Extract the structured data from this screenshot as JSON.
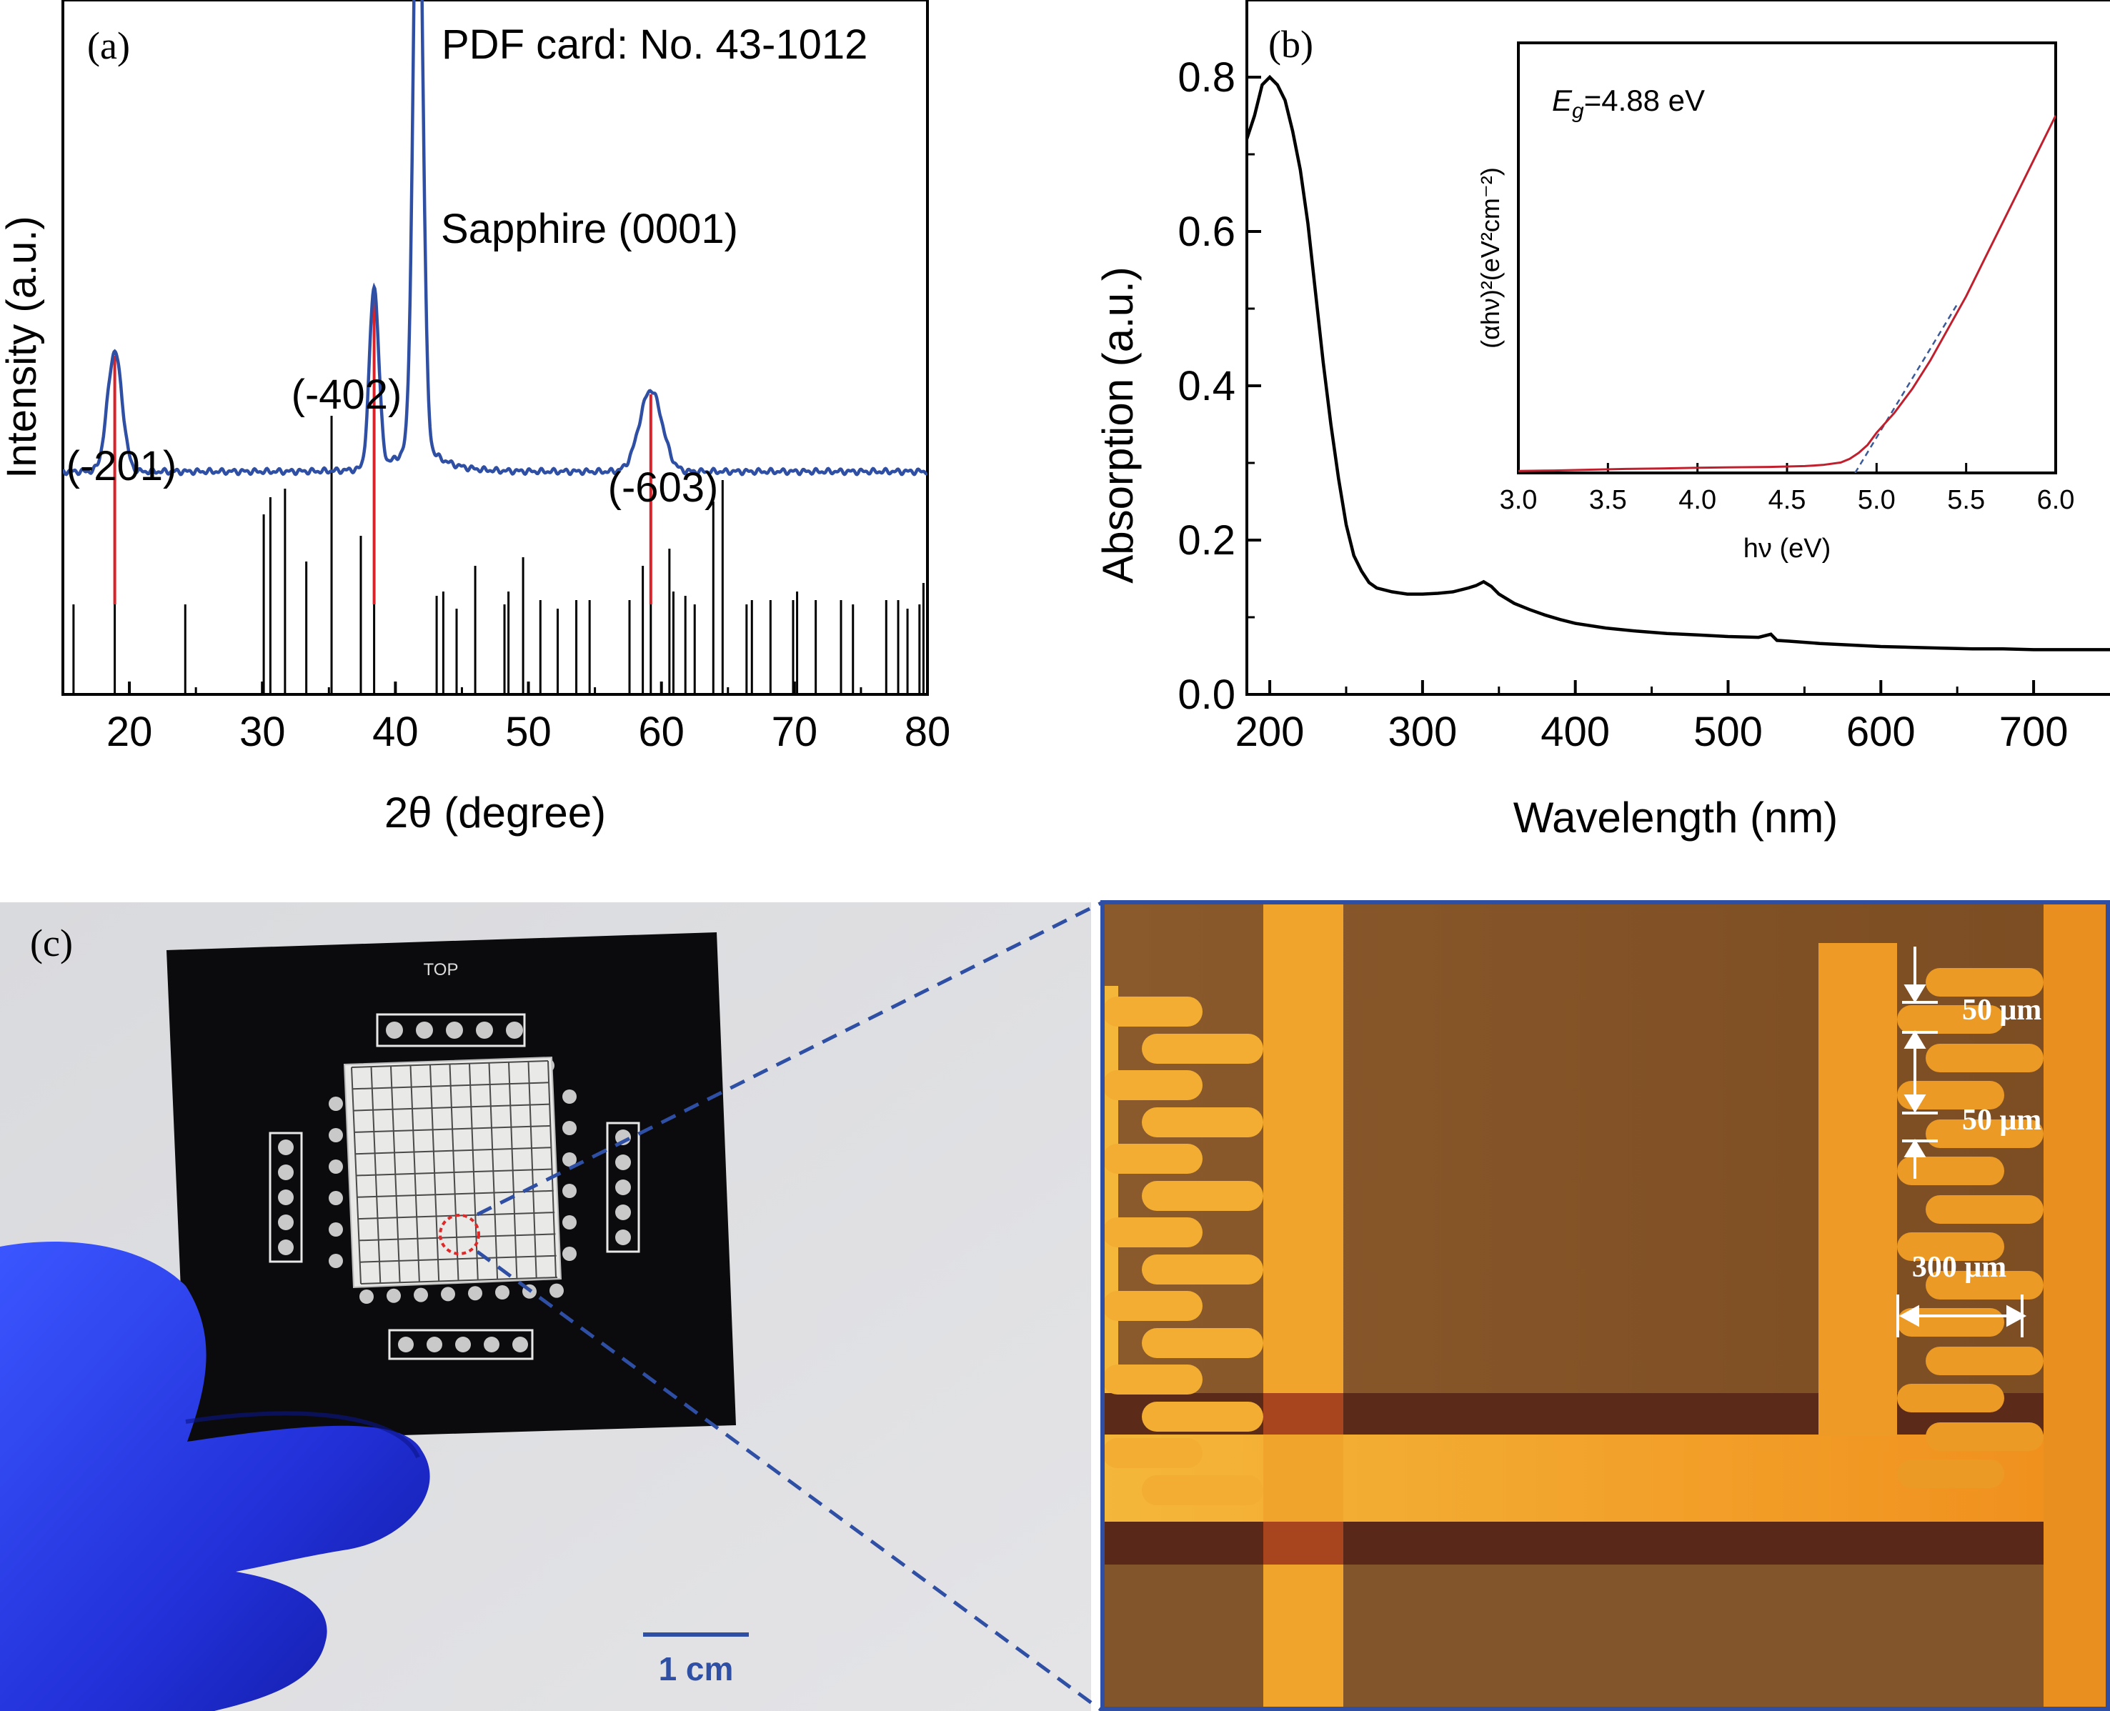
{
  "chart_data": [
    {
      "panel": "(a)",
      "type": "line",
      "annotation": "PDF card: No. 43-1012",
      "xlabel": "2θ (degree)",
      "ylabel": "Intensity (a.u.)",
      "xlim": [
        15,
        80
      ],
      "xticks": [
        20,
        30,
        40,
        50,
        60,
        70,
        80
      ],
      "peaks": [
        {
          "label": "(-201)",
          "x": 18.9,
          "height": 0.28
        },
        {
          "label": "(-402)",
          "x": 38.4,
          "height": 0.42
        },
        {
          "label": "Sapphire (0001)",
          "x": 41.7,
          "height": 1.5
        },
        {
          "label": "(-603)",
          "x": 59.2,
          "height": 0.19
        }
      ],
      "series": [
        {
          "color": "#2e4fa3",
          "baseline": 0.52
        },
        {
          "color": "#d9232a",
          "values": [
            18.9,
            38.4,
            59.2
          ]
        },
        {
          "color": "#000000",
          "x": [
            15.8,
            18.9,
            24.2,
            30.1,
            30.6,
            31.7,
            33.3,
            35.2,
            37.4,
            38.4,
            43.1,
            43.6,
            44.6,
            46.0,
            48.2,
            48.5,
            49.6,
            50.9,
            52.2,
            53.6,
            54.6,
            57.6,
            58.6,
            59.2,
            60.6,
            60.9,
            61.8,
            62.5,
            63.9,
            64.6,
            66.4,
            66.8,
            68.2,
            69.9,
            70.2,
            71.6,
            73.5,
            74.4,
            76.9,
            77.8,
            78.5,
            79.4,
            79.7,
            80.0
          ],
          "values": [
            0.21,
            0.22,
            0.21,
            0.42,
            0.46,
            0.48,
            0.31,
            0.65,
            0.37,
            0.43,
            0.23,
            0.24,
            0.2,
            0.3,
            0.21,
            0.24,
            0.32,
            0.22,
            0.2,
            0.22,
            0.22,
            0.22,
            0.3,
            0.26,
            0.34,
            0.24,
            0.23,
            0.21,
            0.45,
            0.5,
            0.21,
            0.22,
            0.22,
            0.22,
            0.24,
            0.22,
            0.22,
            0.21,
            0.22,
            0.22,
            0.2,
            0.21,
            0.26,
            0.24
          ]
        }
      ]
    },
    {
      "panel": "(b)",
      "type": "line",
      "xlabel": "Wavelength (nm)",
      "ylabel": "Absorption (a.u.)",
      "xlim": [
        185,
        750
      ],
      "ylim": [
        0.0,
        0.9
      ],
      "xticks": [
        200,
        300,
        400,
        500,
        600,
        700
      ],
      "yticks": [
        "0.0",
        "0.2",
        "0.4",
        "0.6",
        "0.8"
      ],
      "series": [
        {
          "color": "#000000",
          "x": [
            185,
            190,
            195,
            200,
            205,
            210,
            215,
            220,
            225,
            230,
            235,
            240,
            245,
            250,
            255,
            260,
            265,
            270,
            280,
            290,
            300,
            310,
            320,
            330,
            335,
            340,
            345,
            350,
            360,
            370,
            380,
            390,
            400,
            420,
            440,
            460,
            480,
            500,
            520,
            528,
            532,
            540,
            560,
            580,
            600,
            620,
            640,
            660,
            680,
            700,
            720,
            750
          ],
          "values": [
            0.72,
            0.75,
            0.79,
            0.8,
            0.79,
            0.77,
            0.73,
            0.68,
            0.61,
            0.52,
            0.43,
            0.35,
            0.28,
            0.22,
            0.18,
            0.16,
            0.145,
            0.138,
            0.133,
            0.13,
            0.13,
            0.131,
            0.133,
            0.138,
            0.141,
            0.146,
            0.14,
            0.13,
            0.118,
            0.11,
            0.103,
            0.097,
            0.092,
            0.086,
            0.082,
            0.079,
            0.077,
            0.075,
            0.074,
            0.078,
            0.07,
            0.069,
            0.066,
            0.064,
            0.062,
            0.061,
            0.06,
            0.059,
            0.059,
            0.058,
            0.058,
            0.058
          ]
        }
      ]
    },
    {
      "panel": "(b) inset",
      "type": "line",
      "annotation": "=4.88 eV",
      "annotation_symbol": "E",
      "annotation_subscript": "g",
      "xlabel": "hν (eV)",
      "ylabel": "(αhν)²(eV²cm⁻²)",
      "xlim": [
        3.0,
        6.0
      ],
      "ylim": [
        0,
        1
      ],
      "xticks": [
        "3.0",
        "3.5",
        "4.0",
        "4.5",
        "5.0",
        "5.5",
        "6.0"
      ],
      "series": [
        {
          "color": "#c0202e",
          "x": [
            3.0,
            3.2,
            3.4,
            3.6,
            3.8,
            4.0,
            4.2,
            4.4,
            4.6,
            4.7,
            4.8,
            4.85,
            4.9,
            4.95,
            5.0,
            5.1,
            5.2,
            5.3,
            5.4,
            5.5,
            5.6,
            5.7,
            5.8,
            5.9,
            6.0
          ],
          "values": [
            0.005,
            0.006,
            0.008,
            0.01,
            0.011,
            0.013,
            0.014,
            0.015,
            0.017,
            0.02,
            0.026,
            0.035,
            0.05,
            0.07,
            0.1,
            0.15,
            0.21,
            0.28,
            0.36,
            0.44,
            0.53,
            0.62,
            0.71,
            0.8,
            0.89
          ]
        },
        {
          "color": "#3a5a9a",
          "x": [
            4.88,
            5.45
          ],
          "values": [
            0.0,
            0.42
          ]
        }
      ]
    }
  ],
  "photo": {
    "panel_label": "(c)",
    "board_label": "TOP",
    "scale_label": "1 cm",
    "accent_color": "#2e4fa3",
    "micrograph_labels": [
      "50 μm",
      "50 μm",
      "300 μm"
    ]
  }
}
